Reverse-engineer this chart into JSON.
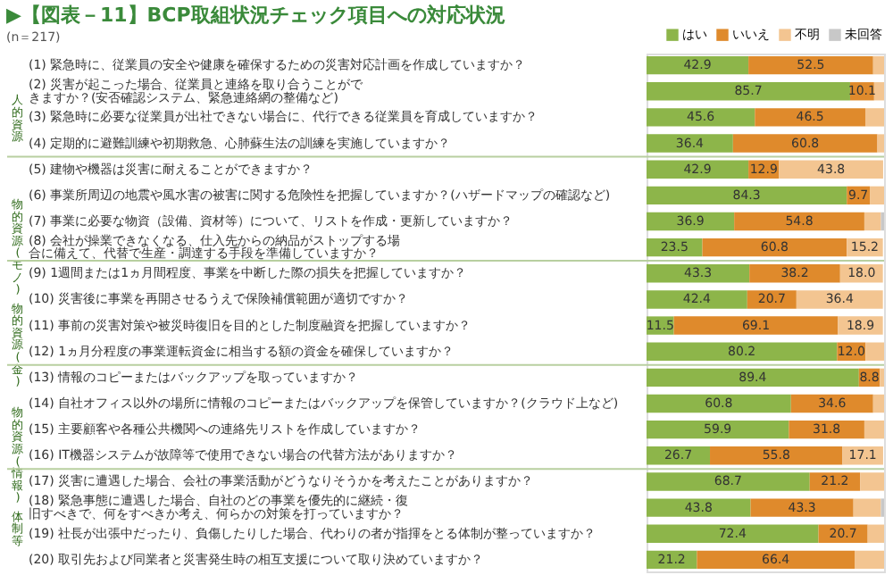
{
  "chart_data": {
    "type": "bar",
    "orientation": "horizontal",
    "stacked": true,
    "title": "▶【図表－11】BCP取組状況チェック項目への対応状況",
    "subtitle": "(n＝217)",
    "categories": [
      "(1) 緊急時に、従業員の安全や健康を確保するための災害対応計画を作成していますか？",
      "(2) 災害が起こった場合、従業員と連絡を取り合うことができますか？(安否確認システム、緊急連絡網の整備など)",
      "(3) 緊急時に必要な従業員が出社できない場合に、代行できる従業員を育成していますか？",
      "(4) 定期的に避難訓練や初期救急、心肺蘇生法の訓練を実施していますか？",
      "(5) 建物や機器は災害に耐えることができますか？",
      "(6) 事業所周辺の地震や風水害の被害に関する危険性を把握していますか？(ハザードマップの確認など)",
      "(7) 事業に必要な物資（設備、資材等）について、リストを作成・更新していますか？",
      "(8) 会社が操業できなくなる、仕入先からの納品がストップする場合に備えて、代替で生産・調達する手段を準備していますか？",
      "(9) 1週間または1ヵ月間程度、事業を中断した際の損失を把握していますか？",
      "(10) 災害後に事業を再開させるうえで保険補償範囲が適切ですか？",
      "(11) 事前の災害対策や被災時復旧を目的とした制度融資を把握していますか？",
      "(12) 1ヵ月分程度の事業運転資金に相当する額の資金を確保していますか？",
      "(13) 情報のコピーまたはバックアップを取っていますか？",
      "(14) 自社オフィス以外の場所に情報のコピーまたはバックアップを保管していますか？(クラウド上など)",
      "(15) 主要顧客や各種公共機関への連絡先リストを作成していますか？",
      "(16) IT機器システムが故障等で使用できない場合の代替方法がありますか？",
      "(17) 災害に遭遇した場合、会社の事業活動がどうなりそうかを考えたことがありますか？",
      "(18) 緊急事態に遭遇した場合、自社のどの事業を優先的に継続・復旧すべきで、何をすべきか考え、何らかの対策を打っていますか？",
      "(19) 社長が出張中だったり、負傷したりした場合、代わりの者が指揮をとる体制が整っていますか？",
      "(20) 取引先および同業者と災害発生時の相互支援について取り決めていますか？"
    ],
    "annotations": [
      "人的資源",
      "物的資源(モノ)",
      "物的資源(金)",
      "物的資源(情報)",
      "体制等"
    ],
    "legend": "top right",
    "series": [
      {
        "name": "はい",
        "color": "#8db54a",
        "values": [
          42.9,
          85.7,
          45.6,
          36.4,
          42.9,
          84.3,
          36.9,
          23.5,
          43.3,
          42.4,
          11.5,
          80.2,
          89.4,
          60.8,
          59.9,
          26.7,
          68.7,
          43.8,
          72.4,
          21.2
        ],
        "value_labels": [
          "42.9",
          "85.7",
          "45.6",
          "36.4",
          "42.9",
          "84.3",
          "36.9",
          "23.5",
          "43.3",
          "42.4",
          "11.5",
          "80.2",
          "89.4",
          "60.8",
          "59.9",
          "26.7",
          "68.7",
          "43.8",
          "72.4",
          "21.2"
        ]
      },
      {
        "name": "いいえ",
        "color": "#df8a2c",
        "values": [
          52.5,
          10.1,
          46.5,
          60.8,
          12.9,
          9.7,
          54.8,
          60.8,
          38.2,
          20.7,
          69.1,
          12.0,
          8.8,
          34.6,
          31.8,
          55.8,
          21.2,
          43.3,
          20.7,
          66.4
        ],
        "value_labels": [
          "52.5",
          "10.1",
          "46.5",
          "60.8",
          "12.9",
          "9.7",
          "54.8",
          "60.8",
          "38.2",
          "20.7",
          "69.1",
          "12.0",
          "8.8",
          "34.6",
          "31.8",
          "55.8",
          "21.2",
          "43.3",
          "20.7",
          "66.4"
        ]
      },
      {
        "name": "不明",
        "color": "#f3c591",
        "values": [
          4.6,
          4.2,
          7.9,
          2.8,
          43.8,
          6.0,
          7.0,
          15.2,
          18.0,
          36.4,
          18.9,
          7.8,
          1.8,
          4.6,
          8.3,
          17.1,
          10.1,
          11.6,
          6.9,
          12.4
        ],
        "value_labels": [
          null,
          null,
          null,
          null,
          "43.8",
          null,
          null,
          "15.2",
          "18.0",
          "36.4",
          "18.9",
          null,
          null,
          null,
          null,
          "17.1",
          null,
          null,
          null,
          null
        ]
      },
      {
        "name": "未回答",
        "color": "#c8c8c8",
        "values": [
          null,
          null,
          null,
          null,
          null,
          null,
          1.3,
          null,
          null,
          null,
          null,
          null,
          null,
          null,
          null,
          null,
          null,
          1.3,
          null,
          null
        ]
      }
    ]
  }
}
